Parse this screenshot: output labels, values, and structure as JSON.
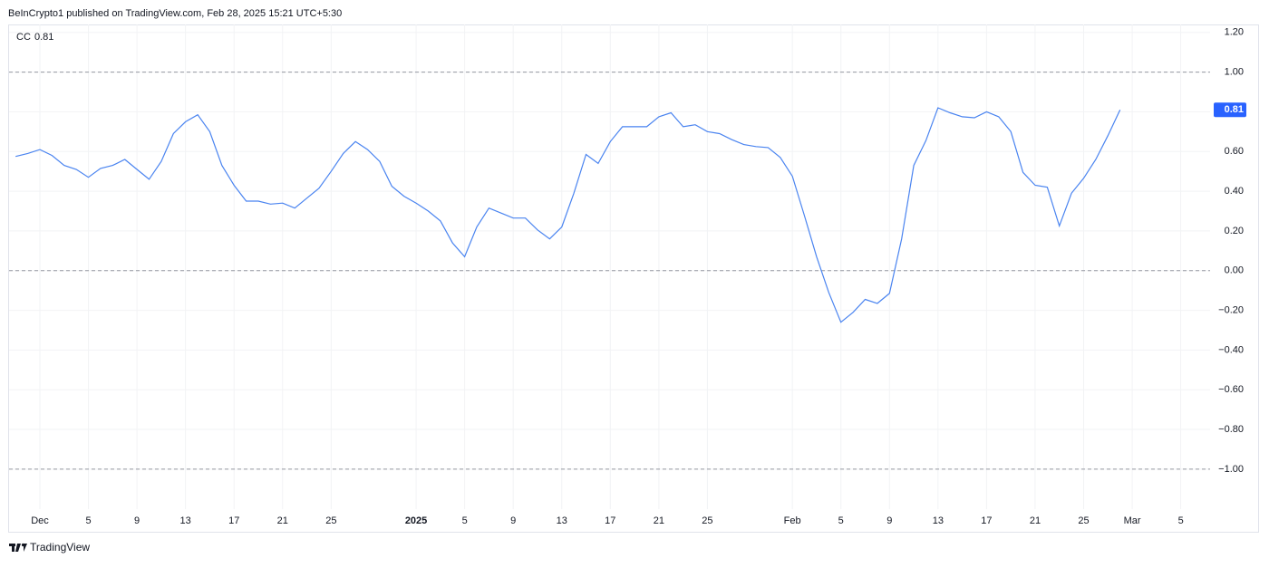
{
  "header": "BeInCrypto1 published on TradingView.com, Feb 28, 2025 15:21 UTC+5:30",
  "footer": "TradingView",
  "chart_data": {
    "type": "line",
    "categories": [
      null,
      null,
      "Dec",
      null,
      null,
      null,
      "5",
      null,
      null,
      null,
      "9",
      null,
      null,
      null,
      "13",
      null,
      null,
      null,
      "17",
      null,
      null,
      null,
      "21",
      null,
      null,
      null,
      "25",
      null,
      null,
      null,
      null,
      null,
      null,
      "2025",
      null,
      null,
      null,
      "5",
      null,
      null,
      null,
      "9",
      null,
      null,
      null,
      "13",
      null,
      null,
      null,
      "17",
      null,
      null,
      null,
      "21",
      null,
      null,
      null,
      "25",
      null,
      null,
      null,
      null,
      null,
      null,
      "Feb",
      null,
      null,
      null,
      "5",
      null,
      null,
      null,
      "9",
      null,
      null,
      null,
      "13",
      null,
      null,
      null,
      "17",
      null,
      null,
      null,
      "21",
      null,
      null,
      null,
      "25",
      null,
      null,
      null,
      "Mar",
      null,
      null,
      null,
      "5",
      null
    ],
    "series": [
      {
        "name": "CC",
        "color": "#4a84f0",
        "values": [
          0.575,
          0.59,
          0.61,
          0.58,
          0.53,
          0.51,
          0.47,
          0.515,
          0.53,
          0.56,
          0.51,
          0.46,
          0.55,
          0.69,
          0.75,
          0.785,
          0.7,
          0.53,
          0.43,
          0.35,
          0.35,
          0.335,
          0.34,
          0.315,
          0.365,
          0.415,
          0.5,
          0.59,
          0.65,
          0.61,
          0.55,
          0.425,
          0.375,
          0.34,
          0.3,
          0.25,
          0.14,
          0.07,
          0.22,
          0.315,
          0.29,
          0.265,
          0.265,
          0.205,
          0.16,
          0.22,
          0.39,
          0.585,
          0.54,
          0.65,
          0.725,
          0.725,
          0.725,
          0.775,
          0.795,
          0.725,
          0.735,
          0.7,
          0.69,
          0.66,
          0.635,
          0.625,
          0.62,
          0.57,
          0.475,
          0.275,
          0.07,
          -0.11,
          -0.26,
          -0.21,
          -0.145,
          -0.165,
          -0.115,
          0.16,
          0.53,
          0.655,
          0.82,
          0.795,
          0.775,
          0.77,
          0.8,
          0.775,
          0.7,
          0.495,
          0.43,
          0.42,
          0.225,
          0.39,
          0.465,
          0.56,
          0.68,
          0.81,
          null,
          null,
          null,
          null,
          null,
          null
        ]
      }
    ],
    "ylim": [
      -1.32,
      1.24
    ],
    "yticks": [
      {
        "value": 1.2,
        "label": "1.20"
      },
      {
        "value": 1,
        "label": "1.00"
      },
      {
        "value": 0.8,
        "label": "0.80"
      },
      {
        "value": 0.6,
        "label": "0.60"
      },
      {
        "value": 0.4,
        "label": "0.40"
      },
      {
        "value": 0.2,
        "label": "0.20"
      },
      {
        "value": 0,
        "label": "0.00"
      },
      {
        "value": -0.2,
        "label": "−0.20"
      },
      {
        "value": -0.4,
        "label": "−0.40"
      },
      {
        "value": -0.6,
        "label": "−0.60"
      },
      {
        "value": -0.8,
        "label": "−0.80"
      },
      {
        "value": -1,
        "label": "−1.00"
      }
    ],
    "hlines": [
      1,
      0,
      -1
    ],
    "grid": true,
    "badge_color": "#2962ff"
  }
}
